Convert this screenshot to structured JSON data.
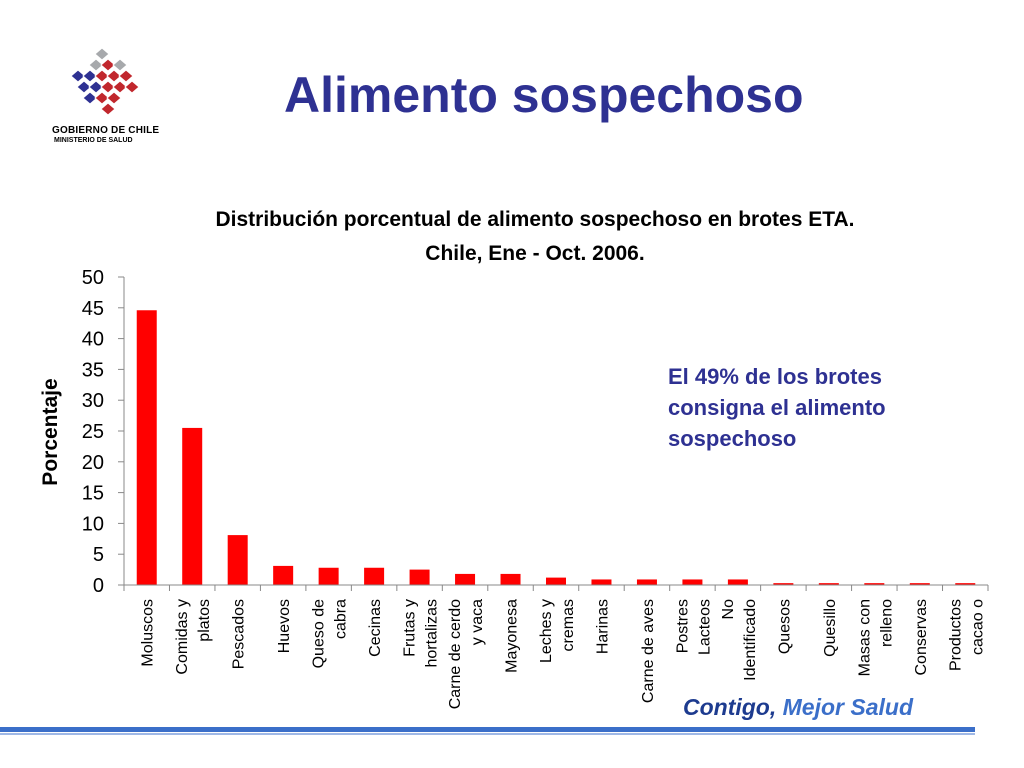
{
  "logo": {
    "line1": "GOBIERNO DE CHILE",
    "line2": "MINISTERIO DE SALUD",
    "colors": [
      "#2e3192",
      "#c1272d",
      "#a7a9ac"
    ]
  },
  "page_title": "Alimento sospechoso",
  "annotation": "El 49% de los brotes consigna el alimento sospechoso",
  "footer": {
    "brand_part1": "Contigo,",
    "brand_part2": " Mejor Salud"
  },
  "colors": {
    "title": "#2e3192",
    "bar": "#ff0000",
    "brand_dark": "#1d3b8f",
    "brand_light": "#3b6fc9"
  },
  "chart_data": {
    "type": "bar",
    "title_line1": "Distribución porcentual de alimento sospechoso en brotes ETA.",
    "title_line2": "Chile, Ene - Oct.  2006.",
    "xlabel": "",
    "ylabel": "Porcentaje",
    "ylim": [
      0,
      50
    ],
    "yticks": [
      0,
      5,
      10,
      15,
      20,
      25,
      30,
      35,
      40,
      45,
      50
    ],
    "grid": false,
    "categories": [
      [
        "Moluscos"
      ],
      [
        "Comidas y",
        "platos"
      ],
      [
        "Pescados"
      ],
      [
        "Huevos"
      ],
      [
        "Queso de",
        "cabra"
      ],
      [
        "Cecinas"
      ],
      [
        "Frutas y",
        "hortalizas"
      ],
      [
        "Carne de cerdo",
        "y vaca"
      ],
      [
        "Mayonesa"
      ],
      [
        "Leches y",
        "cremas"
      ],
      [
        "Harinas"
      ],
      [
        "Carne de aves"
      ],
      [
        "Postres",
        "Lacteos"
      ],
      [
        "No",
        "Identificado"
      ],
      [
        "Quesos"
      ],
      [
        "Quesillo"
      ],
      [
        "Masas con",
        "relleno"
      ],
      [
        "Conservas"
      ],
      [
        "Productos",
        "cacao o"
      ]
    ],
    "values": [
      44.6,
      25.5,
      8.1,
      3.1,
      2.8,
      2.8,
      2.5,
      1.8,
      1.8,
      1.2,
      0.9,
      0.9,
      0.9,
      0.9,
      0.3,
      0.3,
      0.3,
      0.3,
      0.3
    ]
  }
}
